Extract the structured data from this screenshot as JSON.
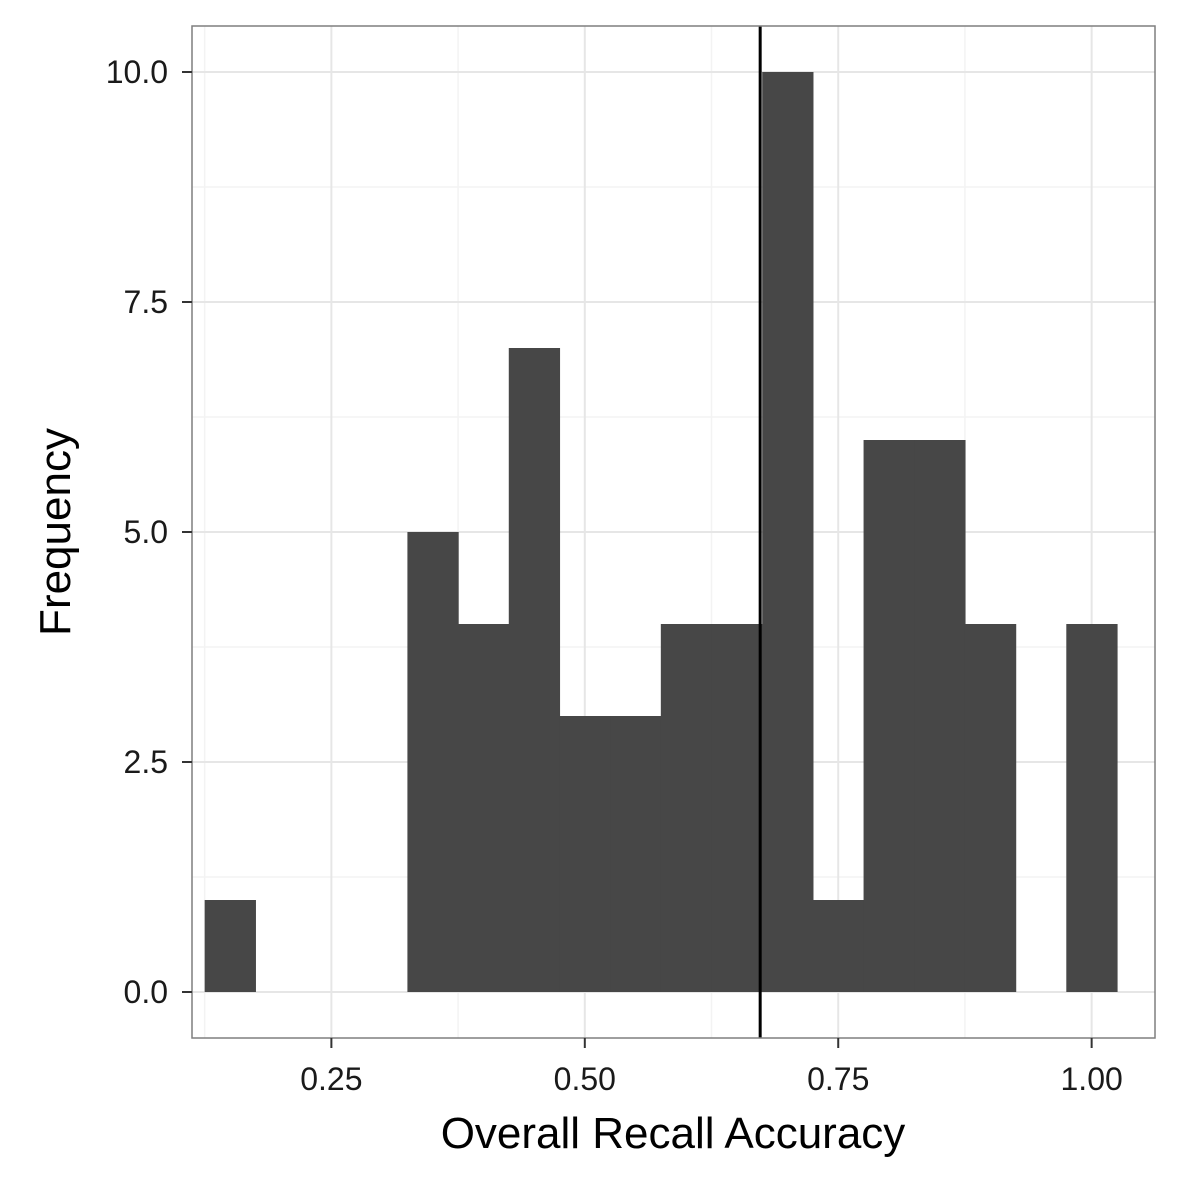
{
  "chart_data": {
    "type": "bar",
    "subtype": "histogram",
    "xlabel": "Overall Recall Accuracy",
    "ylabel": "Frequency",
    "xlim": [
      0.1125,
      1.0625
    ],
    "ylim": [
      -0.5,
      10.5
    ],
    "x_ticks": [
      0.25,
      0.5,
      0.75,
      1.0
    ],
    "x_tick_labels": [
      "0.25",
      "0.50",
      "0.75",
      "1.00"
    ],
    "y_ticks": [
      0.0,
      2.5,
      5.0,
      7.5,
      10.0
    ],
    "y_tick_labels": [
      "0.0",
      "2.5",
      "5.0",
      "7.5",
      "10.0"
    ],
    "bin_width": 0.05,
    "bins": [
      {
        "x": 0.15,
        "count": 1
      },
      {
        "x": 0.35,
        "count": 5
      },
      {
        "x": 0.4,
        "count": 4
      },
      {
        "x": 0.45,
        "count": 7
      },
      {
        "x": 0.5,
        "count": 3
      },
      {
        "x": 0.55,
        "count": 3
      },
      {
        "x": 0.6,
        "count": 4
      },
      {
        "x": 0.65,
        "count": 4
      },
      {
        "x": 0.7,
        "count": 10
      },
      {
        "x": 0.75,
        "count": 1
      },
      {
        "x": 0.8,
        "count": 6
      },
      {
        "x": 0.85,
        "count": 6
      },
      {
        "x": 0.9,
        "count": 4
      },
      {
        "x": 1.0,
        "count": 4
      }
    ],
    "reference_line": {
      "x": 0.673
    },
    "grid": true,
    "colors": {
      "bar": "#474747",
      "reference_line": "#000000",
      "panel_border": "#7f7f7f",
      "grid_major": "#e6e6e6",
      "grid_minor": "#f3f3f3"
    }
  }
}
